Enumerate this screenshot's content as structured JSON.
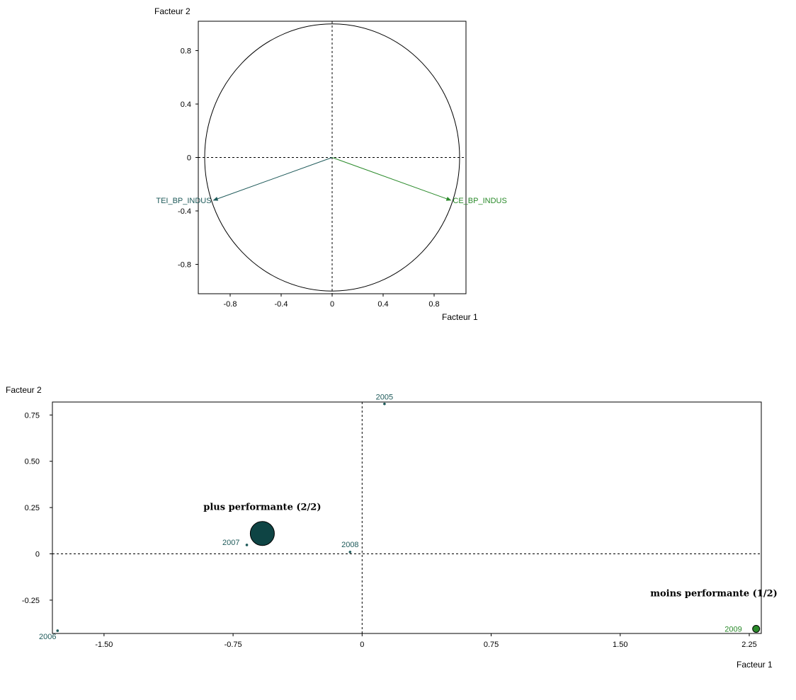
{
  "colors": {
    "dark_teal": "#1e5a5a",
    "cluster_dark": "#0e4444",
    "green": "#2a8a2a",
    "frame": "#000000",
    "background": "#ffffff"
  },
  "chart_data": [
    {
      "type": "scatter",
      "title": "",
      "xlabel": "Facteur 1",
      "ylabel": "Facteur 2",
      "xlim": [
        -1.05,
        1.05
      ],
      "ylim": [
        -1.02,
        1.02
      ],
      "xticks": [
        -0.8,
        -0.4,
        0,
        0.4,
        0.8
      ],
      "xtick_labels": [
        "-0.8",
        "-0.4",
        "0",
        "0.4",
        "0.8"
      ],
      "yticks": [
        0.8,
        0.4,
        0,
        -0.4,
        -0.8
      ],
      "ytick_labels": [
        "0.8",
        "0.4",
        "0",
        "-0.4",
        "-0.8"
      ],
      "unit_circle": true,
      "grid": false,
      "vectors": [
        {
          "name": "TEI_BP_INDUS",
          "x": -0.93,
          "y": -0.32,
          "color": "#1e5a5a"
        },
        {
          "name": "CE_BP_INDUS",
          "x": 0.93,
          "y": -0.32,
          "color": "#2a8a2a"
        }
      ]
    },
    {
      "type": "scatter",
      "title": "",
      "xlabel": "Facteur 1",
      "ylabel": "Facteur 2",
      "xlim": [
        -1.8,
        2.32
      ],
      "ylim": [
        -0.43,
        0.82
      ],
      "xticks": [
        -1.5,
        -0.75,
        0,
        0.75,
        1.5,
        2.25
      ],
      "xtick_labels": [
        "-1.50",
        "-0.75",
        "0",
        "0.75",
        "1.50",
        "2.25"
      ],
      "yticks": [
        0.75,
        0.5,
        0.25,
        0,
        -0.25
      ],
      "ytick_labels": [
        "0.75",
        "0.50",
        "0.25",
        "0",
        "-0.25"
      ],
      "grid": false,
      "points": [
        {
          "label": "2005",
          "x": 0.13,
          "y": 0.81,
          "color": "#1e5a5a"
        },
        {
          "label": "2006",
          "x": -1.77,
          "y": -0.415,
          "color": "#1e5a5a"
        },
        {
          "label": "2007",
          "x": -0.67,
          "y": 0.048,
          "color": "#1e5a5a"
        },
        {
          "label": "2008",
          "x": -0.07,
          "y": 0.01,
          "color": "#1e5a5a"
        },
        {
          "label": "2009",
          "x": 2.29,
          "y": -0.405,
          "color": "#2a8a2a"
        }
      ],
      "clusters": [
        {
          "label": "plus performante (2/2)",
          "x": -0.58,
          "y": 0.11,
          "color": "#0e4444",
          "size": "large"
        },
        {
          "label": "moins performante (1/2)",
          "x": 2.29,
          "y": -0.405,
          "color": "#2a8a2a",
          "size": "small"
        }
      ]
    }
  ]
}
